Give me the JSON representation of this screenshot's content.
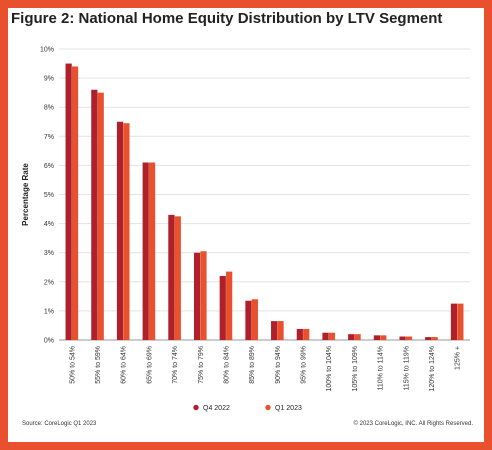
{
  "chart_data": {
    "type": "bar",
    "title": "Figure 2: National Home Equity Distribution by LTV Segment",
    "ylabel": "Percentage Rate",
    "xlabel": "",
    "ylim": [
      0,
      10
    ],
    "yticks": [
      "0%",
      "1%",
      "2%",
      "3%",
      "4%",
      "5%",
      "6%",
      "7%",
      "8%",
      "9%",
      "10%"
    ],
    "grid": true,
    "legend_position": "bottom-center",
    "categories": [
      "50% to 54%",
      "55% to 59%",
      "60% to 64%",
      "65% to 69%",
      "70% to 74%",
      "75% to 79%",
      "80% to 84%",
      "85% to 89%",
      "90% to 94%",
      "95% to 99%",
      "100% to 104%",
      "105% to 109%",
      "110% to 114%",
      "115% to 119%",
      "120% to 124%",
      "125% +"
    ],
    "series": [
      {
        "name": "Q4 2022",
        "color": "#b0202a",
        "values": [
          9.5,
          8.6,
          7.5,
          6.1,
          4.3,
          3.0,
          2.2,
          1.35,
          0.65,
          0.38,
          0.25,
          0.2,
          0.16,
          0.12,
          0.1,
          1.25
        ]
      },
      {
        "name": "Q1 2023",
        "color": "#e8502e",
        "values": [
          9.4,
          8.5,
          7.45,
          6.1,
          4.25,
          3.05,
          2.35,
          1.4,
          0.65,
          0.38,
          0.25,
          0.2,
          0.16,
          0.12,
          0.1,
          1.25
        ]
      }
    ]
  },
  "footer": {
    "source": "Source: CoreLogic Q1 2023",
    "copyright": "© 2023 CoreLogic, INC. All Rights Reserved."
  }
}
